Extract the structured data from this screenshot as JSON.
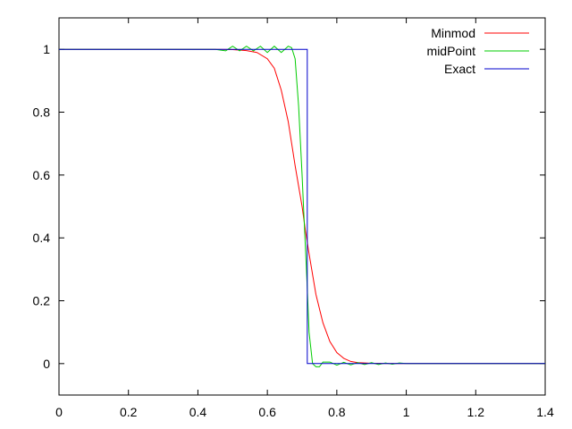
{
  "chart_data": {
    "type": "line",
    "title": "",
    "xlabel": "",
    "ylabel": "",
    "xlim": [
      0,
      1.4
    ],
    "ylim": [
      -0.1,
      1.1
    ],
    "xticks": [
      "0",
      "0.2",
      "0.4",
      "0.6",
      "0.8",
      "1",
      "1.2",
      "1.4"
    ],
    "yticks": [
      "0",
      "0.2",
      "0.4",
      "0.6",
      "0.8",
      "1"
    ],
    "grid": false,
    "legend_position": "top-right",
    "series": [
      {
        "name": "Minmod",
        "color": "#ff0000",
        "x": [
          0,
          0.1,
          0.2,
          0.3,
          0.4,
          0.45,
          0.5,
          0.54,
          0.57,
          0.6,
          0.62,
          0.64,
          0.66,
          0.68,
          0.7,
          0.71,
          0.72,
          0.74,
          0.76,
          0.78,
          0.8,
          0.82,
          0.84,
          0.86,
          0.9,
          0.95,
          1.0,
          1.2,
          1.4
        ],
        "y": [
          1,
          1,
          1,
          1,
          1,
          1,
          0.999,
          0.996,
          0.99,
          0.97,
          0.94,
          0.87,
          0.77,
          0.63,
          0.5,
          0.42,
          0.35,
          0.22,
          0.13,
          0.07,
          0.035,
          0.017,
          0.007,
          0.003,
          0.001,
          0,
          0,
          0,
          0
        ]
      },
      {
        "name": "midPoint",
        "color": "#00cc00",
        "x": [
          0,
          0.2,
          0.3,
          0.4,
          0.45,
          0.48,
          0.5,
          0.52,
          0.54,
          0.56,
          0.58,
          0.6,
          0.62,
          0.64,
          0.66,
          0.67,
          0.68,
          0.69,
          0.7,
          0.705,
          0.71,
          0.715,
          0.72,
          0.73,
          0.74,
          0.75,
          0.76,
          0.78,
          0.8,
          0.82,
          0.84,
          0.86,
          0.88,
          0.9,
          0.92,
          0.94,
          0.96,
          0.98,
          1.0,
          1.05,
          1.1,
          1.2,
          1.3,
          1.4
        ],
        "y": [
          1,
          1,
          1,
          1,
          1,
          0.995,
          1.01,
          0.995,
          1.01,
          0.995,
          1.01,
          0.99,
          1.01,
          0.99,
          1.01,
          1.005,
          0.97,
          0.82,
          0.6,
          0.48,
          0.36,
          0.24,
          0.1,
          0.0,
          -0.01,
          -0.01,
          0.005,
          0.005,
          -0.005,
          0.004,
          -0.004,
          0.003,
          -0.003,
          0.003,
          -0.003,
          0.002,
          -0.002,
          0.002,
          0,
          0,
          0,
          0,
          0,
          0
        ]
      },
      {
        "name": "Exact",
        "color": "#0000cc",
        "x": [
          0,
          0.7,
          0.7,
          0.715,
          0.715,
          1.4
        ],
        "y": [
          1,
          1,
          1,
          1,
          0,
          0
        ]
      }
    ]
  }
}
